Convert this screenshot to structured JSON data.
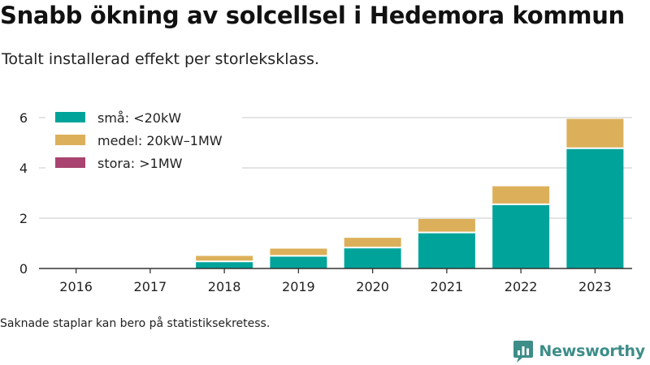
{
  "header": {
    "title": "Snabb ökning av solcellsel i Hedemora kommun",
    "subtitle": "Totalt installerad effekt per storleksklass."
  },
  "footer": {
    "note": "Saknade staplar kan bero på statistiksekretess.",
    "brand": "Newsworthy",
    "brand_icon": "bar-chart-speech-bubble-icon"
  },
  "chart_data": {
    "type": "bar",
    "stacked": true,
    "title": "Snabb ökning av solcellsel i Hedemora kommun",
    "subtitle": "Totalt installerad effekt per storleksklass.",
    "xlabel": "",
    "ylabel": "",
    "categories": [
      "2016",
      "2017",
      "2018",
      "2019",
      "2020",
      "2021",
      "2022",
      "2023"
    ],
    "series": [
      {
        "name": "små: <20kW",
        "color": "#00a39a",
        "values": [
          0,
          0,
          0.25,
          0.47,
          0.8,
          1.4,
          2.52,
          4.75
        ]
      },
      {
        "name": "medel: 20kW–1MW",
        "color": "#dcb05a",
        "values": [
          0,
          0,
          0.25,
          0.32,
          0.42,
          0.57,
          0.75,
          1.2
        ]
      },
      {
        "name": "stora: >1MW",
        "color": "#a8446f",
        "values": [
          0,
          0,
          0,
          0,
          0,
          0,
          0,
          0
        ]
      }
    ],
    "ylim": [
      0,
      6.3
    ],
    "yticks": [
      0,
      2,
      4,
      6
    ],
    "grid": true,
    "legend_position": "top-left"
  }
}
